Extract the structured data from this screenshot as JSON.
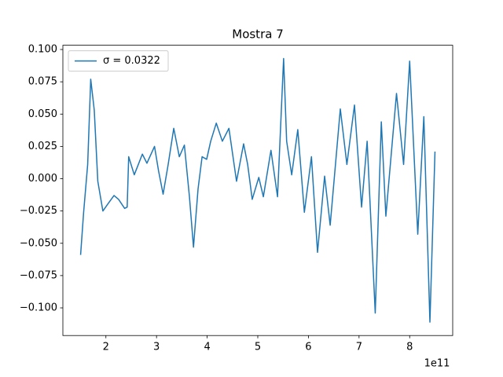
{
  "chart_data": {
    "type": "line",
    "title": "Mostra 7",
    "x_offset_label": "1e11",
    "x": [
      150000000000.0,
      156000000000.0,
      164000000000.0,
      170000000000.0,
      177000000000.0,
      184000000000.0,
      194000000000.0,
      203000000000.0,
      216000000000.0,
      225000000000.0,
      237000000000.0,
      242000000000.0,
      245000000000.0,
      256000000000.0,
      264000000000.0,
      272000000000.0,
      281000000000.0,
      296000000000.0,
      304000000000.0,
      313000000000.0,
      323000000000.0,
      334000000000.0,
      345000000000.0,
      355000000000.0,
      365000000000.0,
      373000000000.0,
      382000000000.0,
      390000000000.0,
      399000000000.0,
      407000000000.0,
      418000000000.0,
      430000000000.0,
      443000000000.0,
      458000000000.0,
      472000000000.0,
      480000000000.0,
      489000000000.0,
      502000000000.0,
      511000000000.0,
      526000000000.0,
      539000000000.0,
      551000000000.0,
      557000000000.0,
      567000000000.0,
      579000000000.0,
      592000000000.0,
      606000000000.0,
      618000000000.0,
      632000000000.0,
      643000000000.0,
      663000000000.0,
      676000000000.0,
      691000000000.0,
      705000000000.0,
      716000000000.0,
      732000000000.0,
      744000000000.0,
      753000000000.0,
      774000000000.0,
      788000000000.0,
      800000000000.0,
      816000000000.0,
      828000000000.0,
      840000000000.0,
      850000000000.0
    ],
    "series": [
      {
        "name": "σ = 0.0322",
        "color": "#1f77b4",
        "values": [
          -0.059,
          -0.026,
          0.011,
          0.077,
          0.053,
          -0.002,
          -0.025,
          -0.02,
          -0.013,
          -0.016,
          -0.023,
          -0.022,
          0.017,
          0.003,
          0.011,
          0.019,
          0.012,
          0.025,
          0.006,
          -0.012,
          0.011,
          0.039,
          0.017,
          0.026,
          -0.014,
          -0.053,
          -0.008,
          0.017,
          0.015,
          0.029,
          0.043,
          0.029,
          0.039,
          -0.002,
          0.027,
          0.011,
          -0.016,
          0.001,
          -0.014,
          0.022,
          -0.014,
          0.093,
          0.029,
          0.003,
          0.038,
          -0.026,
          0.017,
          -0.057,
          0.002,
          -0.036,
          0.054,
          0.011,
          0.057,
          -0.022,
          0.029,
          -0.104,
          0.044,
          -0.029,
          0.066,
          0.011,
          0.091,
          -0.043,
          0.048,
          -0.111,
          0.021
        ]
      }
    ],
    "xlim": [
      115000000000.0,
      885000000000.0
    ],
    "ylim": [
      -0.1214,
      0.1033
    ],
    "xticks": [
      {
        "value": 200000000000.0,
        "label": "2"
      },
      {
        "value": 300000000000.0,
        "label": "3"
      },
      {
        "value": 400000000000.0,
        "label": "4"
      },
      {
        "value": 500000000000.0,
        "label": "5"
      },
      {
        "value": 600000000000.0,
        "label": "6"
      },
      {
        "value": 700000000000.0,
        "label": "7"
      },
      {
        "value": 800000000000.0,
        "label": "8"
      }
    ],
    "yticks": [
      {
        "value": -0.1,
        "label": "−0.100"
      },
      {
        "value": -0.075,
        "label": "−0.075"
      },
      {
        "value": -0.05,
        "label": "−0.050"
      },
      {
        "value": -0.025,
        "label": "−0.025"
      },
      {
        "value": 0,
        "label": "0.000"
      },
      {
        "value": 0.025,
        "label": "0.025"
      },
      {
        "value": 0.05,
        "label": "0.050"
      },
      {
        "value": 0.075,
        "label": "0.075"
      },
      {
        "value": 0.1,
        "label": "0.100"
      }
    ],
    "legend": "upper left",
    "grid": false
  }
}
